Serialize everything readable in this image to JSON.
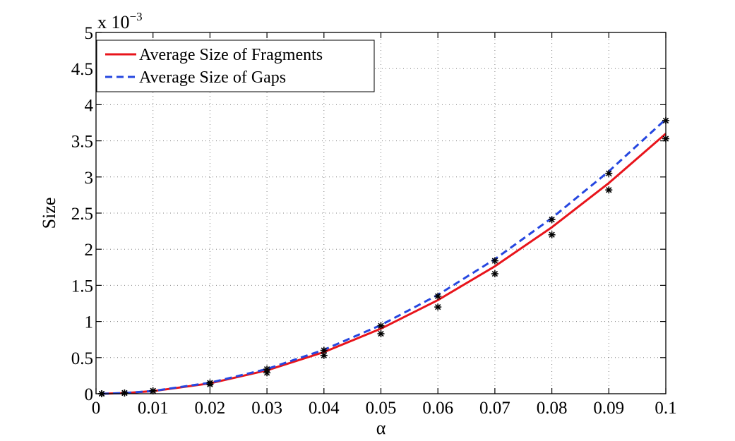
{
  "chart_data": {
    "type": "line",
    "title": "",
    "xlabel": "α",
    "ylabel": "Size",
    "xlim": [
      0,
      0.1
    ],
    "ylim": [
      0,
      5
    ],
    "y_exponent_label": "x 10",
    "y_exponent_power": "−3",
    "x_ticks": [
      0,
      0.01,
      0.02,
      0.03,
      0.04,
      0.05,
      0.06,
      0.07,
      0.08,
      0.09,
      0.1
    ],
    "x_tick_labels": [
      "0",
      "0.01",
      "0.02",
      "0.03",
      "0.04",
      "0.05",
      "0.06",
      "0.07",
      "0.08",
      "0.09",
      "0.1"
    ],
    "y_ticks": [
      0,
      0.5,
      1,
      1.5,
      2,
      2.5,
      3,
      3.5,
      4,
      4.5,
      5
    ],
    "y_tick_labels": [
      "0",
      "0.5",
      "1",
      "1.5",
      "2",
      "2.5",
      "3",
      "3.5",
      "4",
      "4.5",
      "5"
    ],
    "grid": true,
    "legend_position": "top-left",
    "series": [
      {
        "name": "Average Size of Fragments",
        "color": "#e8141b",
        "style": "solid",
        "x": [
          0.001,
          0.005,
          0.01,
          0.02,
          0.03,
          0.04,
          0.05,
          0.06,
          0.07,
          0.08,
          0.09,
          0.1
        ],
        "values": [
          0.0004,
          0.009,
          0.036,
          0.144,
          0.324,
          0.576,
          0.9,
          1.296,
          1.764,
          2.304,
          2.916,
          3.6
        ],
        "markers_x": [
          0.001,
          0.005,
          0.01,
          0.02,
          0.03,
          0.04,
          0.05,
          0.06,
          0.07,
          0.08,
          0.09,
          0.1
        ],
        "markers_y": [
          0.0,
          0.01,
          0.04,
          0.13,
          0.29,
          0.53,
          0.83,
          1.2,
          1.66,
          2.2,
          2.82,
          3.53
        ]
      },
      {
        "name": "Average Size of Gaps",
        "color": "#2647e0",
        "style": "dashed",
        "x": [
          0.001,
          0.005,
          0.01,
          0.02,
          0.03,
          0.04,
          0.05,
          0.06,
          0.07,
          0.08,
          0.09,
          0.1
        ],
        "values": [
          0.0004,
          0.0095,
          0.038,
          0.152,
          0.342,
          0.608,
          0.95,
          1.368,
          1.862,
          2.432,
          3.078,
          3.8
        ],
        "markers_x": [
          0.001,
          0.005,
          0.01,
          0.02,
          0.03,
          0.04,
          0.05,
          0.06,
          0.07,
          0.08,
          0.09,
          0.1
        ],
        "markers_y": [
          0.0,
          0.01,
          0.04,
          0.15,
          0.34,
          0.6,
          0.94,
          1.35,
          1.84,
          2.41,
          3.05,
          3.78
        ]
      }
    ]
  }
}
